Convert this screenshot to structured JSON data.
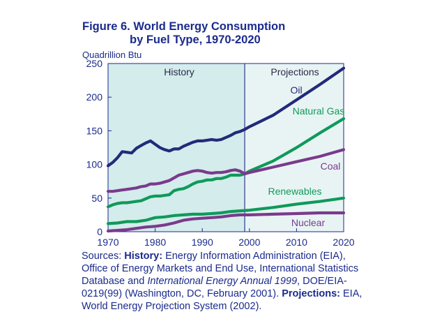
{
  "chart_data": {
    "type": "line",
    "title_line1": "Figure 6.  World Energy Consumption",
    "title_line2": "by Fuel Type, 1970-2020",
    "ylabel": "Quadrillion Btu",
    "xlabel": "",
    "xlim": [
      1970,
      2020
    ],
    "ylim": [
      0,
      250
    ],
    "x_ticks": [
      1970,
      1980,
      1990,
      2000,
      2010,
      2020
    ],
    "y_ticks": [
      0,
      50,
      100,
      150,
      200,
      250
    ],
    "grid": false,
    "divider_year": 1999,
    "regions": {
      "history": "History",
      "projections": "Projections"
    },
    "colors": {
      "history_bg": "#d4ecec",
      "projection_bg": "#e8f4f4",
      "axis": "#1a2a8c",
      "divider": "#2a3a8c"
    },
    "series": [
      {
        "name": "Oil",
        "color": "#232a7a",
        "points": [
          [
            1970,
            98
          ],
          [
            1971,
            103
          ],
          [
            1972,
            110
          ],
          [
            1973,
            119
          ],
          [
            1974,
            118
          ],
          [
            1975,
            117
          ],
          [
            1976,
            124
          ],
          [
            1977,
            128
          ],
          [
            1978,
            132
          ],
          [
            1979,
            135
          ],
          [
            1980,
            130
          ],
          [
            1981,
            125
          ],
          [
            1982,
            122
          ],
          [
            1983,
            120
          ],
          [
            1984,
            123
          ],
          [
            1985,
            123
          ],
          [
            1986,
            127
          ],
          [
            1987,
            130
          ],
          [
            1988,
            133
          ],
          [
            1989,
            135
          ],
          [
            1990,
            135
          ],
          [
            1991,
            136
          ],
          [
            1992,
            137
          ],
          [
            1993,
            136
          ],
          [
            1994,
            137
          ],
          [
            1995,
            140
          ],
          [
            1996,
            143
          ],
          [
            1997,
            147
          ],
          [
            1998,
            149
          ],
          [
            1999,
            152
          ],
          [
            2000,
            156
          ],
          [
            2005,
            173
          ],
          [
            2010,
            196
          ],
          [
            2015,
            219
          ],
          [
            2020,
            243
          ]
        ]
      },
      {
        "name": "Natural Gas",
        "color": "#0f9a5a",
        "points": [
          [
            1970,
            37
          ],
          [
            1971,
            40
          ],
          [
            1972,
            42
          ],
          [
            1973,
            43
          ],
          [
            1974,
            43
          ],
          [
            1975,
            44
          ],
          [
            1976,
            45
          ],
          [
            1977,
            46
          ],
          [
            1978,
            49
          ],
          [
            1979,
            52
          ],
          [
            1980,
            53
          ],
          [
            1981,
            53
          ],
          [
            1982,
            54
          ],
          [
            1983,
            55
          ],
          [
            1984,
            61
          ],
          [
            1985,
            63
          ],
          [
            1986,
            64
          ],
          [
            1987,
            67
          ],
          [
            1988,
            71
          ],
          [
            1989,
            74
          ],
          [
            1990,
            75
          ],
          [
            1991,
            77
          ],
          [
            1992,
            77
          ],
          [
            1993,
            79
          ],
          [
            1994,
            79
          ],
          [
            1995,
            81
          ],
          [
            1996,
            84
          ],
          [
            1997,
            84
          ],
          [
            1998,
            84
          ],
          [
            1999,
            86
          ],
          [
            2000,
            90
          ],
          [
            2005,
            105
          ],
          [
            2010,
            125
          ],
          [
            2015,
            147
          ],
          [
            2020,
            168
          ]
        ]
      },
      {
        "name": "Coal",
        "color": "#7a3a8c",
        "points": [
          [
            1970,
            60
          ],
          [
            1971,
            60
          ],
          [
            1972,
            61
          ],
          [
            1973,
            62
          ],
          [
            1974,
            63
          ],
          [
            1975,
            64
          ],
          [
            1976,
            65
          ],
          [
            1977,
            67
          ],
          [
            1978,
            68
          ],
          [
            1979,
            71
          ],
          [
            1980,
            71
          ],
          [
            1981,
            72
          ],
          [
            1982,
            74
          ],
          [
            1983,
            76
          ],
          [
            1984,
            80
          ],
          [
            1985,
            84
          ],
          [
            1986,
            86
          ],
          [
            1987,
            88
          ],
          [
            1988,
            90
          ],
          [
            1989,
            91
          ],
          [
            1990,
            90
          ],
          [
            1991,
            88
          ],
          [
            1992,
            87
          ],
          [
            1993,
            88
          ],
          [
            1994,
            88
          ],
          [
            1995,
            89
          ],
          [
            1996,
            91
          ],
          [
            1997,
            92
          ],
          [
            1998,
            90
          ],
          [
            1999,
            86
          ],
          [
            2000,
            88
          ],
          [
            2005,
            96
          ],
          [
            2010,
            104
          ],
          [
            2015,
            112
          ],
          [
            2020,
            122
          ]
        ]
      },
      {
        "name": "Renewables",
        "color": "#0f9a5a",
        "points": [
          [
            1970,
            12
          ],
          [
            1972,
            13
          ],
          [
            1974,
            15
          ],
          [
            1976,
            15
          ],
          [
            1978,
            17
          ],
          [
            1980,
            21
          ],
          [
            1982,
            22
          ],
          [
            1984,
            24
          ],
          [
            1986,
            25
          ],
          [
            1988,
            26
          ],
          [
            1990,
            26
          ],
          [
            1992,
            27
          ],
          [
            1994,
            28
          ],
          [
            1996,
            30
          ],
          [
            1998,
            31
          ],
          [
            2000,
            32
          ],
          [
            2005,
            36
          ],
          [
            2010,
            41
          ],
          [
            2015,
            45
          ],
          [
            2020,
            50
          ]
        ]
      },
      {
        "name": "Nuclear",
        "color": "#7a3a8c",
        "points": [
          [
            1970,
            1
          ],
          [
            1972,
            2
          ],
          [
            1974,
            3
          ],
          [
            1976,
            5
          ],
          [
            1978,
            7
          ],
          [
            1980,
            8
          ],
          [
            1982,
            10
          ],
          [
            1984,
            13
          ],
          [
            1986,
            17
          ],
          [
            1988,
            19
          ],
          [
            1990,
            20
          ],
          [
            1992,
            21
          ],
          [
            1994,
            22
          ],
          [
            1996,
            24
          ],
          [
            1998,
            25
          ],
          [
            2000,
            25
          ],
          [
            2005,
            26
          ],
          [
            2010,
            27
          ],
          [
            2015,
            28
          ],
          [
            2020,
            28
          ]
        ]
      }
    ]
  },
  "sources": {
    "prefix": "Sources: ",
    "history_label": "History:",
    "history_text_1": " Energy Information Administration (EIA), Office of Energy Markets and End Use, International Statistics Database and ",
    "history_italic": "International Energy Annual 1999",
    "history_text_2": ", DOE/EIA-0219(99) (Washington, DC, February 2001). ",
    "projections_label": "Projections:",
    "projections_text": " EIA, World Energy Projection System (2002)."
  }
}
